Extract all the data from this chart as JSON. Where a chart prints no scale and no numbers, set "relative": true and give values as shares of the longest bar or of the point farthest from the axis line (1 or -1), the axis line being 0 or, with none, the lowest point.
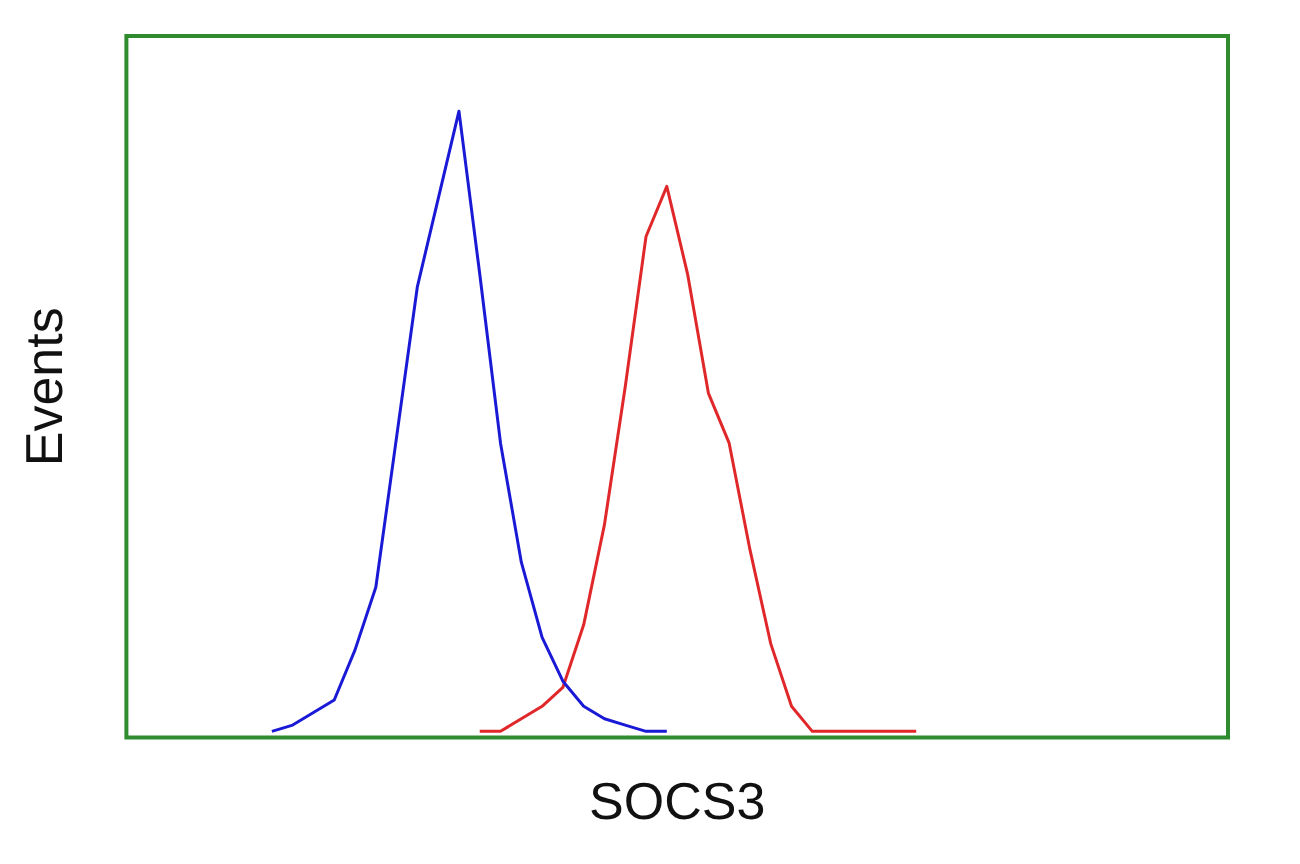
{
  "chart_data": {
    "type": "line",
    "xlabel": "SOCS3",
    "ylabel": "Events",
    "relative": true,
    "legend": false,
    "grid": false,
    "marker": "none",
    "categories": [
      null,
      null,
      null,
      null,
      null,
      null,
      null,
      null,
      null,
      null,
      null,
      null,
      null,
      null,
      null,
      null,
      null,
      null,
      null,
      null,
      null,
      null,
      null,
      null,
      null,
      null,
      null,
      null,
      null,
      null,
      null,
      null,
      null,
      null,
      null,
      null,
      null,
      null,
      null,
      null,
      null,
      null,
      null,
      null,
      null,
      null,
      null,
      null,
      null,
      null,
      null,
      null,
      null,
      null
    ],
    "series": [
      {
        "color": "#1a1ad6",
        "values": [
          null,
          null,
          null,
          null,
          null,
          null,
          null,
          0.01,
          0.02,
          0.04,
          0.06,
          0.14,
          0.24,
          0.48,
          0.72,
          0.86,
          1,
          0.74,
          0.47,
          0.28,
          0.16,
          0.09,
          0.05,
          0.03,
          0.02,
          0.01,
          0.01,
          null,
          null,
          null,
          null,
          null,
          null,
          null,
          null,
          null,
          null,
          null,
          null,
          null,
          null,
          null,
          null,
          null,
          null,
          null,
          null,
          null,
          null,
          null,
          null,
          null,
          null,
          null
        ]
      },
      {
        "color": "#e0282a",
        "values": [
          null,
          null,
          null,
          null,
          null,
          null,
          null,
          null,
          null,
          null,
          null,
          null,
          null,
          null,
          null,
          null,
          null,
          0.01,
          0.01,
          0.03,
          0.05,
          0.08,
          0.18,
          0.34,
          0.56,
          0.8,
          0.88,
          0.74,
          0.55,
          0.47,
          0.3,
          0.15,
          0.05,
          0.01,
          0.01,
          0.01,
          0.01,
          0.01,
          0.01,
          null,
          null,
          null,
          null,
          null,
          null,
          null,
          null,
          null,
          null,
          null,
          null,
          null,
          null,
          null
        ]
      }
    ]
  }
}
